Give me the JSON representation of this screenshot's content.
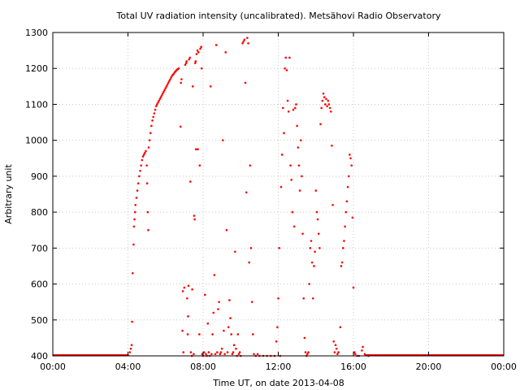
{
  "chart_data": {
    "type": "scatter",
    "title": "Total UV radiation intensity (uncalibrated). Metsähovi Radio Observatory",
    "xlabel": "Time UT, on date 2013-04-08",
    "ylabel": "Arbitrary unit",
    "xlim": [
      0,
      24
    ],
    "ylim": [
      400,
      1300
    ],
    "grid": true,
    "legend": "none",
    "point_color": "#ff0000",
    "x_ticks": [
      {
        "value": 0,
        "label": "00:00"
      },
      {
        "value": 4,
        "label": "04:00"
      },
      {
        "value": 8,
        "label": "08:00"
      },
      {
        "value": 12,
        "label": "12:00"
      },
      {
        "value": 16,
        "label": "16:00"
      },
      {
        "value": 20,
        "label": "20:00"
      },
      {
        "value": 24,
        "label": "00:00"
      }
    ],
    "y_ticks": [
      {
        "value": 400,
        "label": "400"
      },
      {
        "value": 500,
        "label": "500"
      },
      {
        "value": 600,
        "label": "600"
      },
      {
        "value": 700,
        "label": "700"
      },
      {
        "value": 800,
        "label": "800"
      },
      {
        "value": 900,
        "label": "900"
      },
      {
        "value": 1000,
        "label": "1000"
      },
      {
        "value": 1100,
        "label": "1100"
      },
      {
        "value": 1200,
        "label": "1200"
      },
      {
        "value": 1300,
        "label": "1300"
      }
    ],
    "series": [
      {
        "points": [
          [
            4.1,
            410
          ],
          [
            4.15,
            420
          ],
          [
            4.2,
            430
          ],
          [
            4.22,
            495
          ],
          [
            4.25,
            630
          ],
          [
            4.3,
            710
          ],
          [
            4.32,
            760
          ],
          [
            4.35,
            780
          ],
          [
            4.38,
            800
          ],
          [
            4.4,
            820
          ],
          [
            4.45,
            840
          ],
          [
            4.5,
            860
          ],
          [
            4.55,
            880
          ],
          [
            4.6,
            900
          ],
          [
            4.65,
            915
          ],
          [
            4.7,
            930
          ],
          [
            4.75,
            945
          ],
          [
            4.8,
            955
          ],
          [
            4.85,
            960
          ],
          [
            4.9,
            965
          ],
          [
            4.95,
            970
          ],
          [
            5.0,
            930
          ],
          [
            5.02,
            880
          ],
          [
            5.05,
            800
          ],
          [
            5.08,
            750
          ],
          [
            5.1,
            980
          ],
          [
            5.15,
            1000
          ],
          [
            5.2,
            1020
          ],
          [
            5.25,
            1040
          ],
          [
            5.3,
            1055
          ],
          [
            5.35,
            1065
          ],
          [
            5.4,
            1075
          ],
          [
            5.45,
            1085
          ],
          [
            5.5,
            1095
          ],
          [
            5.55,
            1100
          ],
          [
            5.6,
            1105
          ],
          [
            5.65,
            1110
          ],
          [
            5.7,
            1115
          ],
          [
            5.75,
            1120
          ],
          [
            5.8,
            1125
          ],
          [
            5.85,
            1130
          ],
          [
            5.9,
            1135
          ],
          [
            5.95,
            1140
          ],
          [
            6.0,
            1145
          ],
          [
            6.05,
            1150
          ],
          [
            6.1,
            1155
          ],
          [
            6.15,
            1160
          ],
          [
            6.2,
            1165
          ],
          [
            6.25,
            1170
          ],
          [
            6.3,
            1175
          ],
          [
            6.35,
            1180
          ],
          [
            6.4,
            1183
          ],
          [
            6.45,
            1186
          ],
          [
            6.5,
            1190
          ],
          [
            6.55,
            1193
          ],
          [
            6.6,
            1196
          ],
          [
            6.65,
            1198
          ],
          [
            6.7,
            1200
          ],
          [
            6.8,
            1038
          ],
          [
            6.82,
            1160
          ],
          [
            6.85,
            1170
          ],
          [
            6.9,
            470
          ],
          [
            6.92,
            580
          ],
          [
            6.95,
            410
          ],
          [
            7.0,
            590
          ],
          [
            7.05,
            1210
          ],
          [
            7.1,
            1215
          ],
          [
            7.12,
            1220
          ],
          [
            7.15,
            560
          ],
          [
            7.18,
            460
          ],
          [
            7.2,
            510
          ],
          [
            7.22,
            595
          ],
          [
            7.25,
            1225
          ],
          [
            7.3,
            1230
          ],
          [
            7.32,
            885
          ],
          [
            7.35,
            410
          ],
          [
            7.4,
            400
          ],
          [
            7.42,
            585
          ],
          [
            7.45,
            1150
          ],
          [
            7.5,
            405
          ],
          [
            7.52,
            790
          ],
          [
            7.55,
            780
          ],
          [
            7.58,
            1215
          ],
          [
            7.6,
            1220
          ],
          [
            7.62,
            975
          ],
          [
            7.65,
            1240
          ],
          [
            7.7,
            1250
          ],
          [
            7.72,
            975
          ],
          [
            7.75,
            1245
          ],
          [
            7.8,
            460
          ],
          [
            7.82,
            930
          ],
          [
            7.85,
            1255
          ],
          [
            7.9,
            1260
          ],
          [
            7.92,
            1200
          ],
          [
            7.95,
            405
          ],
          [
            8.0,
            400
          ],
          [
            8.05,
            410
          ],
          [
            8.1,
            570
          ],
          [
            8.15,
            405
          ],
          [
            8.2,
            400
          ],
          [
            8.25,
            490
          ],
          [
            8.3,
            410
          ],
          [
            8.35,
            400
          ],
          [
            8.4,
            1150
          ],
          [
            8.45,
            405
          ],
          [
            8.5,
            460
          ],
          [
            8.55,
            520
          ],
          [
            8.6,
            625
          ],
          [
            8.65,
            405
          ],
          [
            8.7,
            1265
          ],
          [
            8.75,
            410
          ],
          [
            8.8,
            530
          ],
          [
            8.85,
            550
          ],
          [
            8.9,
            405
          ],
          [
            8.95,
            410
          ],
          [
            9.0,
            420
          ],
          [
            9.05,
            1000
          ],
          [
            9.1,
            470
          ],
          [
            9.15,
            405
          ],
          [
            9.2,
            1245
          ],
          [
            9.25,
            750
          ],
          [
            9.3,
            410
          ],
          [
            9.35,
            480
          ],
          [
            9.4,
            555
          ],
          [
            9.45,
            505
          ],
          [
            9.5,
            460
          ],
          [
            9.55,
            405
          ],
          [
            9.6,
            410
          ],
          [
            9.65,
            430
          ],
          [
            9.7,
            690
          ],
          [
            9.75,
            420
          ],
          [
            9.8,
            400
          ],
          [
            9.85,
            460
          ],
          [
            9.9,
            405
          ],
          [
            9.95,
            410
          ],
          [
            10.0,
            400
          ],
          [
            10.1,
            1270
          ],
          [
            10.15,
            1275
          ],
          [
            10.2,
            1280
          ],
          [
            10.25,
            1160
          ],
          [
            10.3,
            855
          ],
          [
            10.35,
            1285
          ],
          [
            10.4,
            1270
          ],
          [
            10.45,
            660
          ],
          [
            10.5,
            930
          ],
          [
            10.55,
            700
          ],
          [
            10.6,
            550
          ],
          [
            10.65,
            460
          ],
          [
            10.7,
            405
          ],
          [
            10.8,
            400
          ],
          [
            10.9,
            405
          ],
          [
            11.0,
            400
          ],
          [
            11.2,
            400
          ],
          [
            11.4,
            400
          ],
          [
            11.6,
            400
          ],
          [
            11.8,
            400
          ],
          [
            11.9,
            440
          ],
          [
            11.95,
            480
          ],
          [
            12.0,
            560
          ],
          [
            12.05,
            700
          ],
          [
            12.1,
            400
          ],
          [
            12.15,
            870
          ],
          [
            12.2,
            960
          ],
          [
            12.25,
            1090
          ],
          [
            12.3,
            1020
          ],
          [
            12.35,
            1200
          ],
          [
            12.4,
            1230
          ],
          [
            12.45,
            1195
          ],
          [
            12.5,
            1110
          ],
          [
            12.55,
            1080
          ],
          [
            12.6,
            1230
          ],
          [
            12.65,
            930
          ],
          [
            12.7,
            890
          ],
          [
            12.75,
            800
          ],
          [
            12.8,
            1085
          ],
          [
            12.85,
            760
          ],
          [
            12.9,
            1090
          ],
          [
            12.95,
            1100
          ],
          [
            13.0,
            1040
          ],
          [
            13.05,
            980
          ],
          [
            13.1,
            930
          ],
          [
            13.15,
            860
          ],
          [
            13.2,
            1000
          ],
          [
            13.25,
            900
          ],
          [
            13.3,
            740
          ],
          [
            13.35,
            560
          ],
          [
            13.4,
            450
          ],
          [
            13.45,
            410
          ],
          [
            13.5,
            400
          ],
          [
            13.55,
            405
          ],
          [
            13.6,
            410
          ],
          [
            13.65,
            600
          ],
          [
            13.7,
            700
          ],
          [
            13.75,
            720
          ],
          [
            13.8,
            660
          ],
          [
            13.85,
            560
          ],
          [
            13.9,
            650
          ],
          [
            13.95,
            690
          ],
          [
            14.0,
            860
          ],
          [
            14.05,
            800
          ],
          [
            14.1,
            780
          ],
          [
            14.15,
            740
          ],
          [
            14.2,
            700
          ],
          [
            14.25,
            1045
          ],
          [
            14.3,
            1090
          ],
          [
            14.35,
            1110
          ],
          [
            14.4,
            1130
          ],
          [
            14.45,
            1120
          ],
          [
            14.5,
            1100
          ],
          [
            14.55,
            1115
          ],
          [
            14.6,
            1095
          ],
          [
            14.65,
            1110
          ],
          [
            14.7,
            1100
          ],
          [
            14.75,
            1090
          ],
          [
            14.8,
            1080
          ],
          [
            14.85,
            985
          ],
          [
            14.9,
            820
          ],
          [
            14.95,
            440
          ],
          [
            15.0,
            410
          ],
          [
            15.05,
            430
          ],
          [
            15.1,
            420
          ],
          [
            15.15,
            405
          ],
          [
            15.2,
            410
          ],
          [
            15.3,
            480
          ],
          [
            15.35,
            650
          ],
          [
            15.4,
            660
          ],
          [
            15.45,
            700
          ],
          [
            15.5,
            720
          ],
          [
            15.55,
            760
          ],
          [
            15.6,
            800
          ],
          [
            15.65,
            830
          ],
          [
            15.7,
            870
          ],
          [
            15.75,
            900
          ],
          [
            15.8,
            960
          ],
          [
            15.85,
            950
          ],
          [
            15.9,
            930
          ],
          [
            15.95,
            785
          ],
          [
            16.0,
            590
          ],
          [
            16.05,
            410
          ],
          [
            16.1,
            405
          ],
          [
            16.2,
            400
          ],
          [
            16.3,
            400
          ],
          [
            16.45,
            415
          ],
          [
            16.5,
            425
          ],
          [
            16.6,
            405
          ],
          [
            16.8,
            400
          ]
        ]
      }
    ]
  }
}
